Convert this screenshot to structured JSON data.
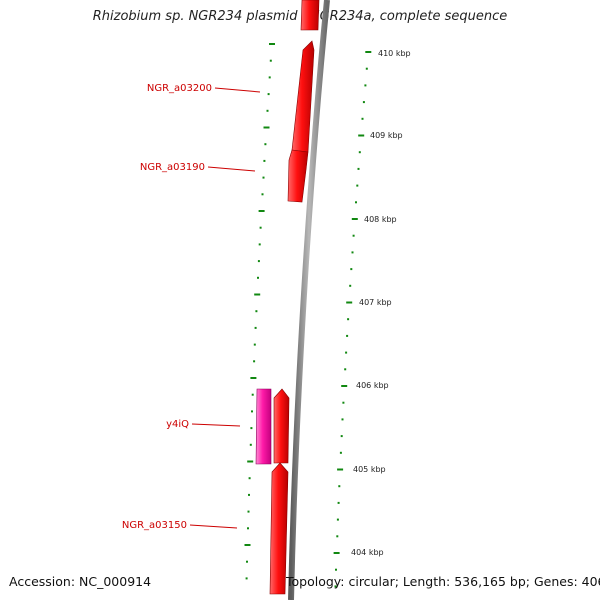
{
  "title": "Rhizobium sp. NGR234 plasmid pNGR234a, complete sequence",
  "footer": {
    "accession": "Accession: NC_000914",
    "summary": "Topology: circular; Length: 536,165 bp; Genes: 406"
  },
  "genes": [
    {
      "name": "NGR_a03200",
      "color": "#e00000",
      "strand": "reverse"
    },
    {
      "name": "NGR_a03190",
      "color": "#e00000",
      "strand": "forward"
    },
    {
      "name": "y4iQ",
      "color": "#e00099",
      "strand": "forward"
    },
    {
      "name": "NGR_a03150",
      "color": "#e00000",
      "strand": "reverse"
    }
  ],
  "scale": {
    "labels": [
      "410 kbp",
      "409 kbp",
      "408 kbp",
      "407 kbp",
      "406 kbp",
      "405 kbp",
      "404 kbp"
    ],
    "tick_color": "#118811"
  },
  "colors": {
    "label_text": "#cc0000",
    "leader_line": "#cc0000",
    "backbone": "#8a8a8a"
  }
}
